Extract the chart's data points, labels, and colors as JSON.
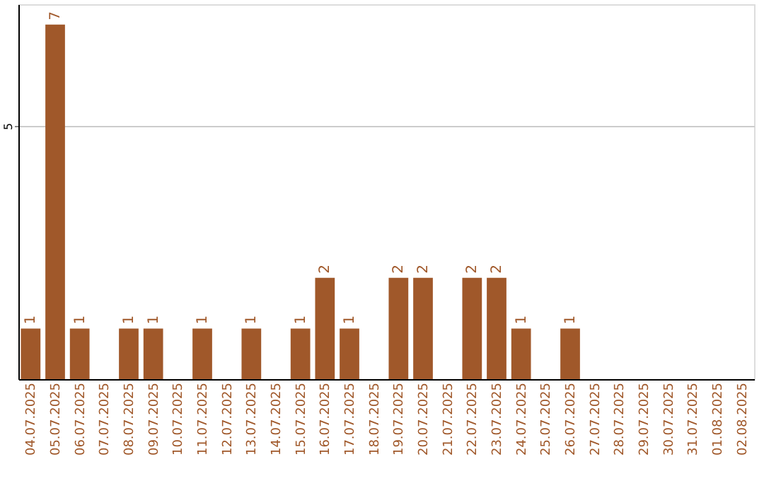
{
  "chart_data": {
    "type": "bar",
    "categories": [
      "04.07.2025",
      "05.07.2025",
      "06.07.2025",
      "07.07.2025",
      "08.07.2025",
      "09.07.2025",
      "10.07.2025",
      "11.07.2025",
      "12.07.2025",
      "13.07.2025",
      "14.07.2025",
      "15.07.2025",
      "16.07.2025",
      "17.07.2025",
      "18.07.2025",
      "19.07.2025",
      "20.07.2025",
      "21.07.2025",
      "22.07.2025",
      "23.07.2025",
      "24.07.2025",
      "25.07.2025",
      "26.07.2025",
      "27.07.2025",
      "28.07.2025",
      "29.07.2025",
      "30.07.2025",
      "31.07.2025",
      "01.08.2025",
      "02.08.2025"
    ],
    "values": [
      1,
      7,
      1,
      0,
      1,
      1,
      0,
      1,
      0,
      1,
      0,
      1,
      2,
      1,
      0,
      2,
      2,
      0,
      2,
      2,
      1,
      0,
      1,
      0,
      0,
      0,
      0,
      0,
      0,
      0
    ],
    "value_labels": [
      "1",
      "7",
      "1",
      null,
      "1",
      "1",
      null,
      "1",
      null,
      "1",
      null,
      "1",
      "2",
      "1",
      null,
      "2",
      "2",
      null,
      "2",
      "2",
      "1",
      null,
      "1",
      null,
      null,
      null,
      null,
      null,
      null,
      null
    ],
    "color": "#a0582a",
    "ylim": [
      0,
      7.4
    ],
    "yticks": [
      5
    ],
    "grid": "y"
  }
}
